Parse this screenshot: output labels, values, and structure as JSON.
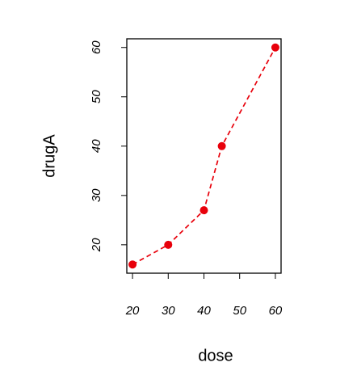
{
  "chart_data": {
    "type": "line",
    "x_label": "dose",
    "y_label": "drugA",
    "x": [
      20,
      30,
      40,
      45,
      60
    ],
    "series": [
      {
        "values": [
          16,
          20,
          27,
          40,
          60
        ],
        "color": "#e8000b"
      }
    ],
    "xlim": [
      18.4,
      61.6
    ],
    "xticks": [
      20,
      30,
      40,
      50,
      60
    ],
    "ylim": [
      14.24,
      61.76
    ],
    "yticks": [
      20,
      30,
      40,
      50,
      60
    ]
  }
}
